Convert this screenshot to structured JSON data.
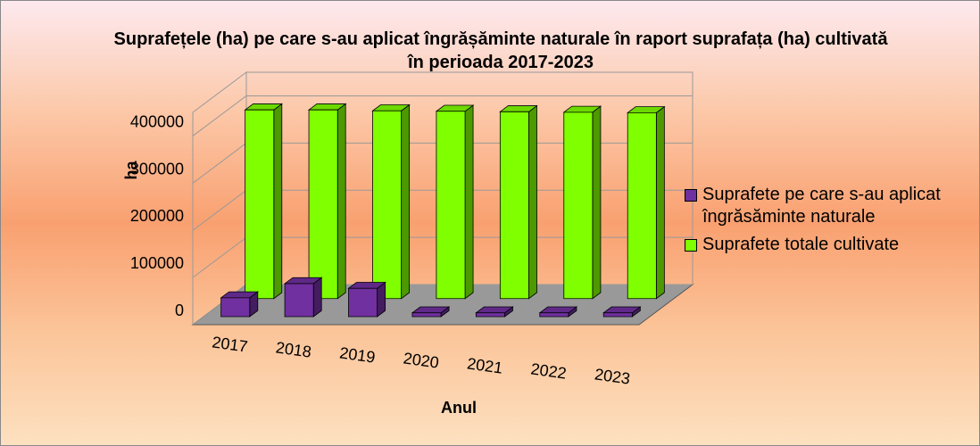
{
  "chart_data": {
    "type": "bar3d",
    "title": "Suprafețele (ha) pe care s-au aplicat îngrășăminte naturale în raport suprafața (ha) cultivată în perioada 2017-2023",
    "x_label": "Anul",
    "y_label": "ha",
    "categories": [
      "2017",
      "2018",
      "2019",
      "2020",
      "2021",
      "2022",
      "2023"
    ],
    "series": [
      {
        "name": "Suprafete pe care s-au aplicat îngrăsăminte naturale",
        "color": "#7030a0",
        "values": [
          40000,
          70000,
          60000,
          8000,
          8000,
          8000,
          8000
        ]
      },
      {
        "name": "Suprafete totale cultivate",
        "color": "#80ff00",
        "values": [
          400000,
          400000,
          398000,
          397000,
          396000,
          395000,
          394000
        ]
      }
    ],
    "ylim": [
      0,
      450000
    ],
    "yticks": [
      0,
      100000,
      200000,
      300000,
      400000
    ],
    "grid": true,
    "legend": "right"
  }
}
